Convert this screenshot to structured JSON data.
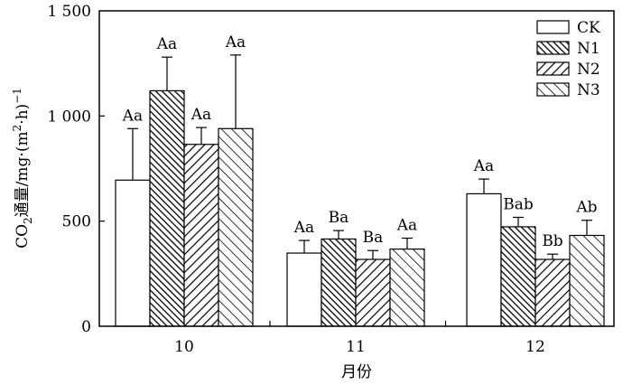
{
  "chart_data": {
    "type": "bar",
    "categories": [
      "10",
      "11",
      "12"
    ],
    "xlabel": "月份",
    "ylabel": {
      "prefix": "CO",
      "sub": "2",
      "middle": "通量/mg·(m",
      "sup1": "2",
      "middle2": "·h)",
      "sup2": "−1"
    },
    "ylim": [
      0,
      1500
    ],
    "yticks": [
      {
        "value": 0,
        "label": "0"
      },
      {
        "value": 500,
        "label": "500"
      },
      {
        "value": 1000,
        "label": "1 000"
      },
      {
        "value": 1500,
        "label": "1 500"
      }
    ],
    "legend_position": "top-right",
    "series": [
      {
        "name": "CK",
        "pattern": "none",
        "values": [
          695,
          348,
          630
        ],
        "errors": [
          245,
          60,
          70
        ],
        "labels": [
          "Aa",
          "Aa",
          "Aa"
        ]
      },
      {
        "name": "N1",
        "pattern": "dense-back",
        "values": [
          1120,
          415,
          473
        ],
        "errors": [
          160,
          40,
          45
        ],
        "labels": [
          "Aa",
          "Ba",
          "Bab"
        ]
      },
      {
        "name": "N2",
        "pattern": "forward",
        "values": [
          865,
          318,
          318
        ],
        "errors": [
          80,
          42,
          25
        ],
        "labels": [
          "Aa",
          "Ba",
          "Bb"
        ]
      },
      {
        "name": "N3",
        "pattern": "back",
        "values": [
          940,
          367,
          432
        ],
        "errors": [
          350,
          52,
          72
        ],
        "labels": [
          "Aa",
          "Aa",
          "Ab"
        ]
      }
    ]
  }
}
